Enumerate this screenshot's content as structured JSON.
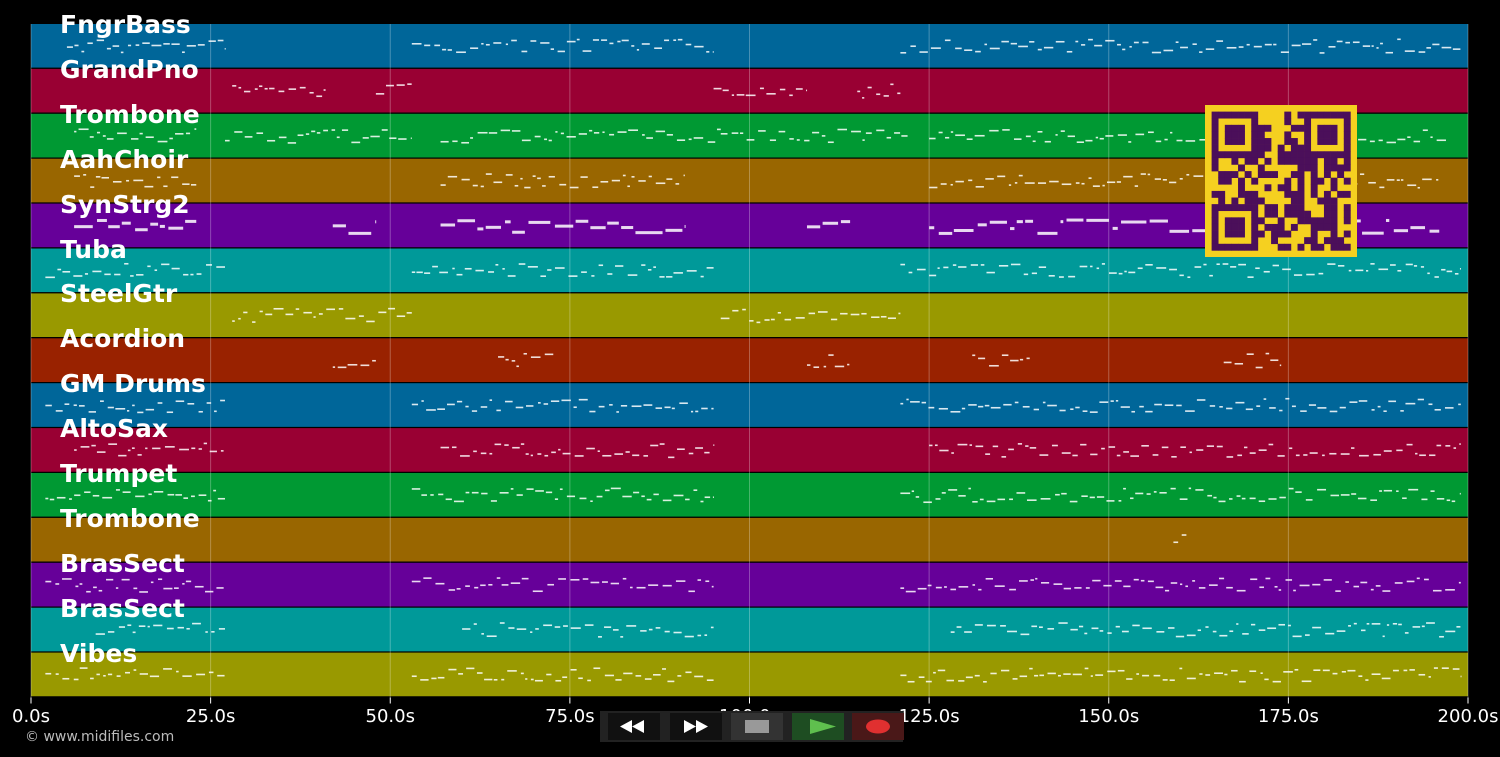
{
  "colors": {
    "background": "#000000",
    "track_colors": [
      "#006699",
      "#990033",
      "#009933",
      "#996600",
      "#660099",
      "#009999",
      "#999900",
      "#992200"
    ]
  },
  "tracks": [
    {
      "name": "FngrBass"
    },
    {
      "name": "GrandPno"
    },
    {
      "name": "Trombone"
    },
    {
      "name": "AahChoir"
    },
    {
      "name": "SynStrg2"
    },
    {
      "name": "Tuba"
    },
    {
      "name": "SteelGtr"
    },
    {
      "name": "Acordion"
    },
    {
      "name": "GM Drums"
    },
    {
      "name": "AltoSax"
    },
    {
      "name": "Trumpet"
    },
    {
      "name": "Trombone"
    },
    {
      "name": "BrasSect"
    },
    {
      "name": "BrasSect"
    },
    {
      "name": "Vibes"
    }
  ],
  "timeline": {
    "ticks": [
      "0.0s",
      "25.0s",
      "50.0s",
      "75.0s",
      "100.0s",
      "125.0s",
      "150.0s",
      "175.0s",
      "200.0s"
    ],
    "tick_values": [
      0,
      25,
      50,
      75,
      100,
      125,
      150,
      175,
      200
    ],
    "range_seconds": [
      0,
      200
    ]
  },
  "copyright": "© www.midifiles.com",
  "transport": {
    "rewind": "rewind-icon",
    "fast_forward": "fast-forward-icon",
    "stop": "stop-icon",
    "play": "play-icon",
    "record": "record-icon"
  },
  "qr": {
    "icon": "qr-code-icon",
    "color": "#f5d020",
    "dark": "#4b0f5a"
  }
}
